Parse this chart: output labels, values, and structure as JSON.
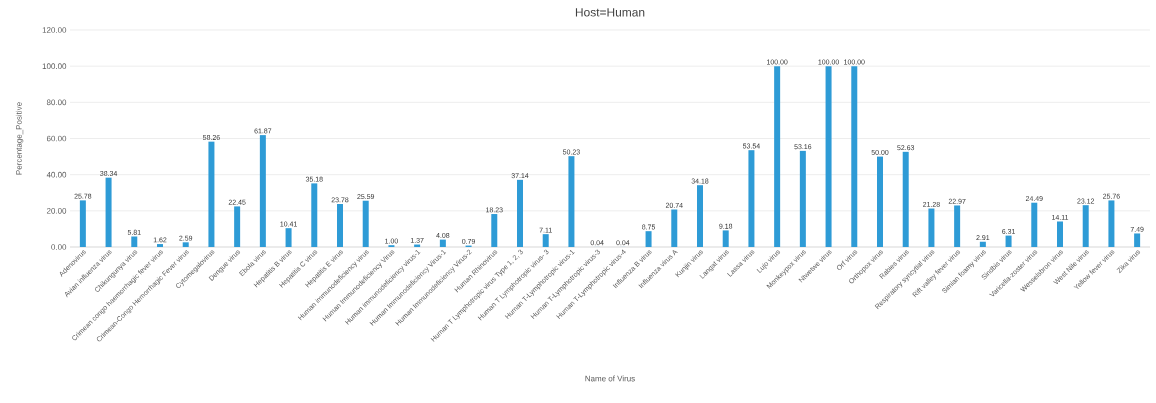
{
  "chart_data": {
    "type": "bar",
    "title": "Host=Human",
    "xlabel": "Name of Virus",
    "ylabel": "Percentage_Positive",
    "categories": [
      "Adenovirus",
      "Avian influenza virus",
      "Chikungunya virus",
      "Crimean congo haemorrhagic fever virus",
      "Crimean-Congo Hemorrhagic Fever virus",
      "Cytomegalovirus",
      "Dengue virus",
      "Ebola virus",
      "Hepatitis B virus",
      "Hepatitis C virus",
      "Hepatitis E virus",
      "Human immunodeficiency virus",
      "Human Immunodeficiency Virus",
      "Human immunodeficiency virus-1",
      "Human Immunodeficiency Virus-1",
      "Human Immunodeficiency Virus-2",
      "Human Rhinovirus",
      "Human T Lymphotropic virus Type 1, 2, 3",
      "Human T Lymphotropic virus- 3",
      "Human T-Lymphotropic virus-1",
      "Human T-Lymphotropic virus-3",
      "Human T-Lymphotropic virus-4",
      "Influenza B virus",
      "Influenza virus A",
      "Kunjin virus",
      "Langat virus",
      "Lassa virus",
      "Lujo virus",
      "Monkeypox virus",
      "Ntwetwe virus",
      "Orf virus",
      "Orthopox virus",
      "Rabies virus",
      "Respiratory syncytial virus",
      "Rift valley fever virus",
      "Simian foamy virus",
      "Sindbis virus",
      "Varicella-zoster virus",
      "Wesselsbron virus",
      "West Nile virus",
      "Yellow fever virus",
      "Zika virus"
    ],
    "values": [
      25.78,
      38.34,
      5.81,
      1.62,
      2.59,
      58.26,
      22.45,
      61.87,
      10.41,
      35.18,
      23.78,
      25.59,
      1.0,
      1.37,
      4.08,
      0.79,
      18.23,
      37.14,
      7.11,
      50.23,
      0.04,
      0.04,
      8.75,
      20.74,
      34.18,
      9.18,
      53.54,
      100.0,
      53.16,
      100.0,
      100.0,
      50.0,
      52.63,
      21.28,
      22.97,
      2.91,
      6.31,
      24.49,
      14.11,
      23.12,
      25.76,
      7.49
    ],
    "value_labels": [
      "25.78",
      "38.34",
      "5.81",
      "1.62",
      "2.59",
      "58.26",
      "22.45",
      "61.87",
      "10.41",
      "35.18",
      "23.78",
      "25.59",
      "1.00",
      "1.37",
      "4.08",
      "0.79",
      "18.23",
      "37.14",
      "7.11",
      "50.23",
      "0.04",
      "0.04",
      "8.75",
      "20.74",
      "34.18",
      "9.18",
      "53.54",
      "100.00",
      "53.16",
      "100.00",
      "100.00",
      "50.00",
      "52.63",
      "21.28",
      "22.97",
      "2.91",
      "6.31",
      "24.49",
      "14.11",
      "23.12",
      "25.76",
      "7.49"
    ],
    "color": "#2e9bd6",
    "ylim": [
      0,
      120
    ],
    "yticks": [
      {
        "value": 0,
        "label": "0.00"
      },
      {
        "value": 20,
        "label": "20.00"
      },
      {
        "value": 40,
        "label": "40.00"
      },
      {
        "value": 60,
        "label": "60.00"
      },
      {
        "value": 80,
        "label": "80.00"
      },
      {
        "value": 100,
        "label": "100.00"
      },
      {
        "value": 120,
        "label": "120.00"
      }
    ],
    "grid": "y"
  }
}
